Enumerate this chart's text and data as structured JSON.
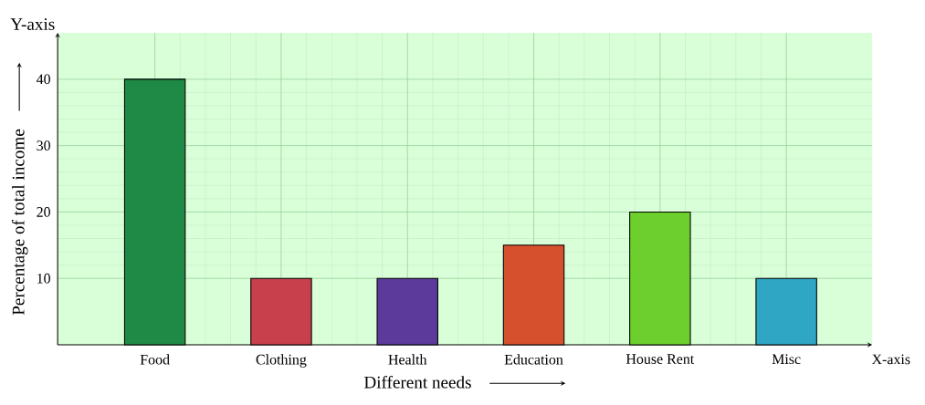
{
  "chart_data": {
    "type": "bar",
    "categories": [
      "Food",
      "Clothing",
      "Health",
      "Education",
      "House Rent",
      "Misc"
    ],
    "values": [
      40,
      10,
      10,
      15,
      20,
      10
    ],
    "colors": [
      "#1f8a45",
      "#c8404c",
      "#5b3a9c",
      "#d6502e",
      "#6ccf2e",
      "#2ea6c4"
    ],
    "xlabel": "Different needs",
    "ylabel": "Percentage of total income",
    "annotations": [
      "Y-axis",
      "X-axis"
    ],
    "ylim": [
      0,
      47
    ],
    "yticks": [
      10,
      20,
      30,
      40
    ],
    "grid": true
  }
}
